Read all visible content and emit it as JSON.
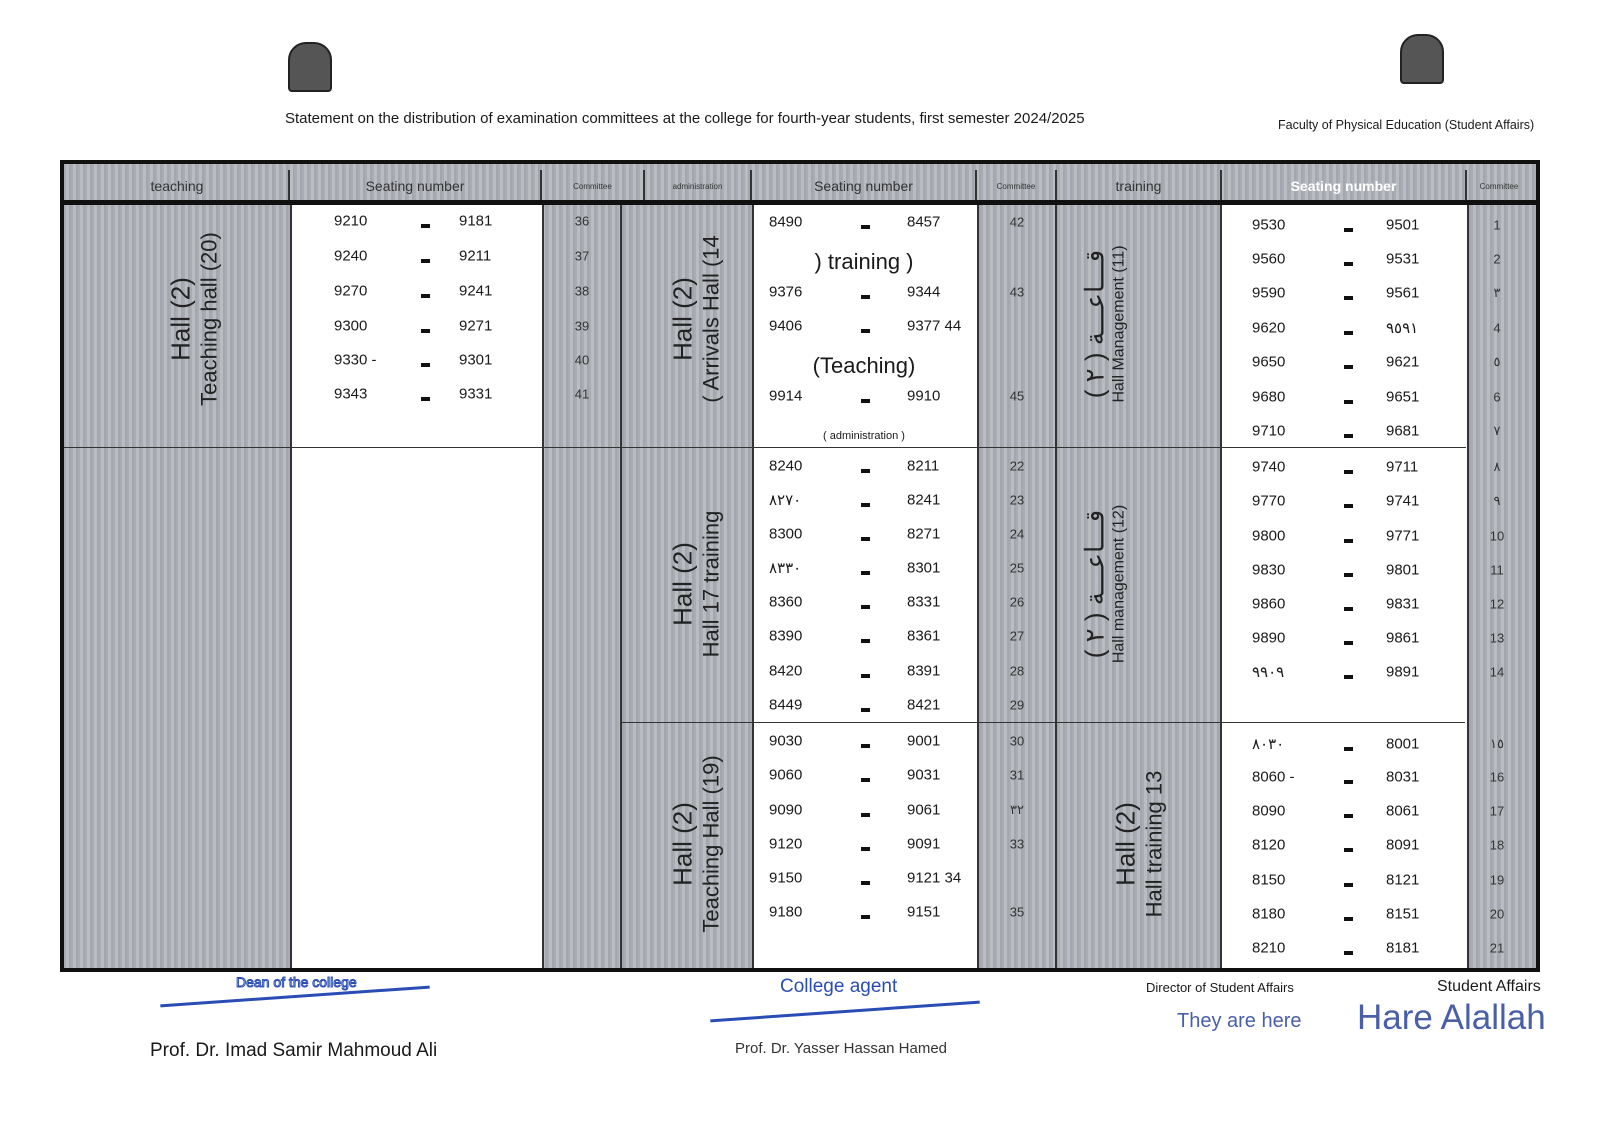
{
  "header": {
    "title": "Statement on the distribution of examination committees at the college for fourth-year students, first semester 2024/2025",
    "faculty": "Faculty of Physical Education (Student Affairs)"
  },
  "columns": [
    "teaching",
    "Seating number",
    "Committee",
    "administration",
    "Seating number",
    "Committee",
    "training",
    "Seating number",
    "Committee"
  ],
  "halls": [
    {
      "line1": "Hall (2)",
      "line2": "Teaching hall (20)"
    },
    {
      "line1": "Hall (2)",
      "line2": "( Arrivals Hall (14"
    },
    {
      "line1": "Hall (2)",
      "line2": "Hall 17 training"
    },
    {
      "line1": "Hall (2)",
      "line2": "Teaching Hall (19)"
    },
    {
      "line1": "قـــاعـــة ( ٢ )",
      "line2": "Hall Management (11)"
    },
    {
      "line1": "قـــاعـــة ( ٢ )",
      "line2": "Hall management (12)"
    },
    {
      "line1": "Hall (2)",
      "line2": "Hall training 13"
    }
  ],
  "notes": {
    "training": ") training )",
    "teaching": "(Teaching)",
    "administration": "( administration )"
  },
  "left_rows": [
    [
      "9210",
      "9181",
      "36"
    ],
    [
      "9240",
      "9211",
      "37"
    ],
    [
      "9270",
      "9241",
      "38"
    ],
    [
      "9300",
      "9271",
      "39"
    ],
    [
      "9330 -",
      "9301",
      "40"
    ],
    [
      "9343",
      "9331",
      "41"
    ]
  ],
  "middle_rows": [
    [
      "8490",
      "8457",
      "42"
    ],
    [
      "9376",
      "9344",
      "43"
    ],
    [
      "9406",
      "9377 44",
      ""
    ],
    [
      "9914",
      "9910",
      "45"
    ],
    [
      "8240",
      "8211",
      "22"
    ],
    [
      "٨٢٧٠",
      "8241",
      "23"
    ],
    [
      "8300",
      "8271",
      "24"
    ],
    [
      "٨٣٣٠",
      "8301",
      "25"
    ],
    [
      "8360",
      "8331",
      "26"
    ],
    [
      "8390",
      "8361",
      "27"
    ],
    [
      "8420",
      "8391",
      "28"
    ],
    [
      "8449",
      "8421",
      "29"
    ],
    [
      "9030",
      "9001",
      "30"
    ],
    [
      "9060",
      "9031",
      "31"
    ],
    [
      "9090",
      "9061",
      "٣٢"
    ],
    [
      "9120",
      "9091",
      "33"
    ],
    [
      "9150",
      "9121 34",
      ""
    ],
    [
      "9180",
      "9151",
      "35"
    ]
  ],
  "right_rows": [
    [
      "9530",
      "9501",
      "1"
    ],
    [
      "9560",
      "9531",
      "2"
    ],
    [
      "9590",
      "9561",
      "٣"
    ],
    [
      "9620",
      "٩٥٩١",
      "4"
    ],
    [
      "9650",
      "9621",
      "٥"
    ],
    [
      "9680",
      "9651",
      "6"
    ],
    [
      "9710",
      "9681",
      "٧"
    ],
    [
      "9740",
      "9711",
      "٨"
    ],
    [
      "9770",
      "9741",
      "٩"
    ],
    [
      "9800",
      "9771",
      "10"
    ],
    [
      "9830",
      "9801",
      "11"
    ],
    [
      "9860",
      "9831",
      "12"
    ],
    [
      "9890",
      "9861",
      "13"
    ],
    [
      "٩٩٠٩",
      "9891",
      "14"
    ],
    [
      "٨٠٣٠",
      "8001",
      "١٥"
    ],
    [
      "8060 -",
      "8031",
      "16"
    ],
    [
      "8090",
      "8061",
      "17"
    ],
    [
      "8120",
      "8091",
      "18"
    ],
    [
      "8150",
      "8121",
      "19"
    ],
    [
      "8180",
      "8151",
      "20"
    ],
    [
      "8210",
      "8181",
      "21"
    ]
  ],
  "footer": {
    "dean_label": "Dean of the college",
    "dean_name": "Prof. Dr. Imad Samir Mahmoud Ali",
    "agent_label": "College agent",
    "agent_name": "Prof. Dr. Yasser Hassan Hamed",
    "director_label": "Director of Student Affairs",
    "director_name": "They are here",
    "affairs_label": "Student Affairs",
    "affairs_name": "Hare Alallah"
  },
  "colors": {
    "signature": "#2a4db5",
    "cell_grey": "#b0b4b9"
  }
}
